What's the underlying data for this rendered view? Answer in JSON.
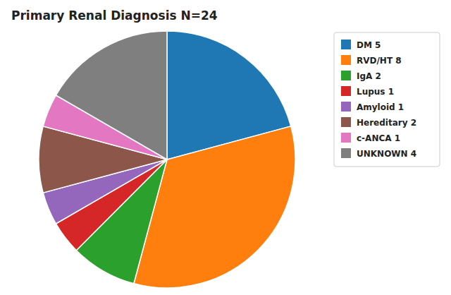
{
  "chart_data": {
    "type": "pie",
    "title": "Primary Renal Diagnosis N=24",
    "categories": [
      "DM 5",
      "RVD/HT 8",
      "IgA 2",
      "Lupus 1",
      "Amyloid 1",
      "Hereditary 2",
      "c-ANCA 1",
      "UNKNOWN 4"
    ],
    "values": [
      5,
      8,
      2,
      1,
      1,
      2,
      1,
      4
    ],
    "legend": "upper right"
  }
}
